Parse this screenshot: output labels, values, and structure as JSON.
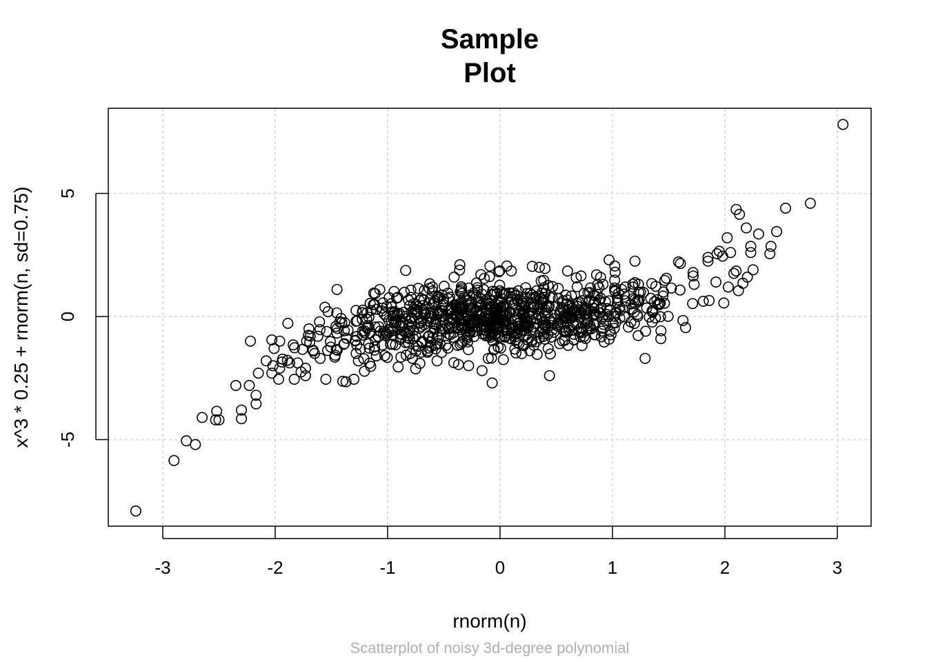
{
  "chart_data": {
    "type": "scatter",
    "title": [
      "Sample",
      "Plot"
    ],
    "subtitle": "Scatterplot of noisy 3d-degree polynomial",
    "xlabel": "rnorm(n)",
    "ylabel": "x^3 * 0.25 + rnorm(n, sd=0.75)",
    "xlim": [
      -3.49,
      3.3
    ],
    "ylim": [
      -8.6,
      8.4
    ],
    "x_ticks": [
      -3,
      -2,
      -1,
      0,
      1,
      2,
      3
    ],
    "y_ticks": [
      -5,
      0,
      5
    ],
    "grid": true,
    "point_count": 1000,
    "points": [
      [
        -3.24,
        -7.9
      ],
      [
        -2.9,
        -5.85
      ],
      [
        -2.79,
        -5.05
      ],
      [
        -2.71,
        -5.2
      ],
      [
        -2.65,
        -4.1
      ],
      [
        -2.53,
        -4.2
      ],
      [
        -2.5,
        -4.2
      ],
      [
        -2.52,
        -3.85
      ],
      [
        -2.3,
        -4.15
      ],
      [
        -2.3,
        -3.8
      ],
      [
        -2.35,
        -2.8
      ],
      [
        -2.23,
        -2.8
      ],
      [
        -2.17,
        -3.55
      ],
      [
        -2.17,
        -3.2
      ],
      [
        -2.15,
        -2.3
      ],
      [
        -2.22,
        -1.0
      ],
      [
        -2.08,
        -1.8
      ],
      [
        -2.03,
        -2.3
      ],
      [
        -2.02,
        -2.0
      ],
      [
        -1.97,
        -2.55
      ],
      [
        -1.96,
        -2.1
      ],
      [
        -1.94,
        -1.85
      ],
      [
        -1.96,
        -1.0
      ],
      [
        -2.03,
        -0.95
      ],
      [
        -2.01,
        -1.3
      ],
      [
        -1.83,
        -2.55
      ],
      [
        -1.77,
        -2.25
      ],
      [
        -1.73,
        -2.1
      ],
      [
        -1.73,
        -2.4
      ],
      [
        -1.84,
        -1.15
      ],
      [
        -1.72,
        -1.0
      ],
      [
        -1.7,
        -0.5
      ],
      [
        -1.62,
        -0.8
      ],
      [
        -1.65,
        -1.5
      ],
      [
        -1.6,
        -1.7
      ],
      [
        -1.55,
        -2.55
      ],
      [
        -1.47,
        -1.65
      ],
      [
        -1.45,
        1.1
      ],
      [
        -1.53,
        0.2
      ],
      [
        -1.46,
        -0.4
      ],
      [
        -1.37,
        -2.65
      ],
      [
        -1.3,
        -2.55
      ],
      [
        -1.26,
        -1.8
      ],
      [
        -1.16,
        -1.9
      ],
      [
        -1.1,
        -1.6
      ],
      [
        -1.07,
        1.1
      ],
      [
        -0.78,
        -1.7
      ],
      [
        -0.7,
        -1.45
      ],
      [
        -0.56,
        -1.8
      ],
      [
        -0.37,
        -1.95
      ],
      [
        -0.28,
        -2.0
      ],
      [
        -0.16,
        -2.2
      ],
      [
        -0.07,
        -2.7
      ],
      [
        -0.14,
        1.55
      ],
      [
        -0.09,
        2.05
      ],
      [
        0.06,
        2.05
      ],
      [
        0.1,
        1.85
      ],
      [
        0.35,
        2.0
      ],
      [
        0.4,
        1.95
      ],
      [
        0.44,
        -2.4
      ],
      [
        0.6,
        1.85
      ],
      [
        0.72,
        1.65
      ],
      [
        0.97,
        2.3
      ],
      [
        1.02,
        2.05
      ],
      [
        1.2,
        2.25
      ],
      [
        1.29,
        -1.7
      ],
      [
        1.43,
        -0.9
      ],
      [
        1.65,
        -0.45
      ],
      [
        1.85,
        2.25
      ],
      [
        1.85,
        2.4
      ],
      [
        1.93,
        2.55
      ],
      [
        1.95,
        2.65
      ],
      [
        1.98,
        2.45
      ],
      [
        2.02,
        3.2
      ],
      [
        2.05,
        2.6
      ],
      [
        2.1,
        4.35
      ],
      [
        2.13,
        4.15
      ],
      [
        2.19,
        3.6
      ],
      [
        2.23,
        2.85
      ],
      [
        2.23,
        2.6
      ],
      [
        2.3,
        3.35
      ],
      [
        2.4,
        2.55
      ],
      [
        2.41,
        2.85
      ],
      [
        2.46,
        3.45
      ],
      [
        2.54,
        4.4
      ],
      [
        2.25,
        1.9
      ],
      [
        2.16,
        1.35
      ],
      [
        2.2,
        1.6
      ],
      [
        2.12,
        1.05
      ],
      [
        2.03,
        1.2
      ],
      [
        1.99,
        0.55
      ],
      [
        1.86,
        0.65
      ],
      [
        2.08,
        1.75
      ],
      [
        2.1,
        1.85
      ],
      [
        1.92,
        1.4
      ],
      [
        2.76,
        4.6
      ],
      [
        3.05,
        7.8
      ]
    ]
  }
}
